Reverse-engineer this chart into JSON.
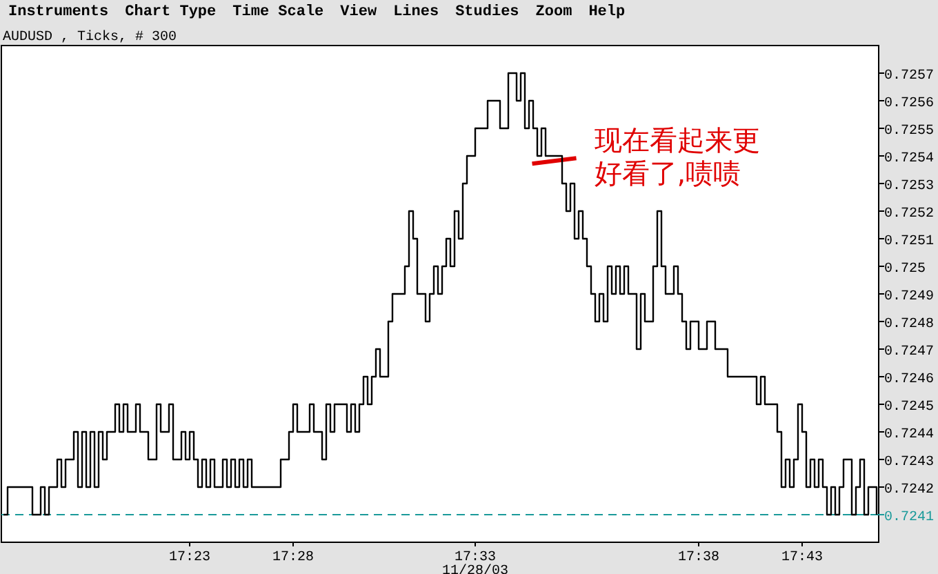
{
  "chart_data": {
    "type": "step",
    "title": "AUDUSD , Ticks, # 300",
    "categories": [
      null,
      null,
      null,
      null,
      null,
      null,
      null,
      null,
      null,
      null,
      null,
      null,
      null,
      null,
      null,
      null,
      null,
      null,
      null,
      null,
      null,
      null,
      null,
      null,
      null,
      null,
      null,
      null,
      null,
      null,
      null,
      null,
      null,
      null,
      null,
      null,
      null,
      null,
      null,
      null,
      null,
      null,
      null,
      null,
      null,
      "17:23",
      null,
      null,
      null,
      null,
      null,
      null,
      null,
      null,
      null,
      null,
      null,
      null,
      null,
      null,
      null,
      null,
      null,
      null,
      null,
      null,
      null,
      null,
      null,
      null,
      "17:28",
      null,
      null,
      null,
      null,
      null,
      null,
      null,
      null,
      null,
      null,
      null,
      null,
      null,
      null,
      null,
      null,
      null,
      null,
      null,
      null,
      null,
      null,
      null,
      null,
      null,
      null,
      null,
      null,
      null,
      null,
      null,
      null,
      null,
      null,
      null,
      null,
      null,
      null,
      null,
      null,
      null,
      null,
      null,
      "17:33\n11/28/03",
      null,
      null,
      null,
      null,
      null,
      null,
      null,
      null,
      null,
      null,
      null,
      null,
      null,
      null,
      null,
      null,
      null,
      null,
      null,
      null,
      null,
      null,
      null,
      null,
      null,
      null,
      null,
      null,
      null,
      null,
      null,
      null,
      null,
      null,
      null,
      null,
      null,
      null,
      null,
      null,
      null,
      null,
      null,
      null,
      null,
      null,
      null,
      null,
      null,
      null,
      null,
      null,
      null,
      "17:38",
      null,
      null,
      null,
      null,
      null,
      null,
      null,
      null,
      null,
      null,
      null,
      null,
      null,
      null,
      null,
      null,
      null,
      null,
      null,
      null,
      null,
      null,
      null,
      null,
      "17:43",
      null,
      null,
      null,
      null,
      null,
      null,
      null,
      null,
      null,
      null,
      null,
      null,
      null,
      null,
      null,
      null,
      null,
      null
    ],
    "ylim": [
      0.724,
      0.7258
    ],
    "yticks": [
      0.7242,
      0.7243,
      0.7244,
      0.7245,
      0.7246,
      0.7247,
      0.7248,
      0.7249,
      0.725,
      0.7251,
      0.7252,
      0.7253,
      0.7254,
      0.7255,
      0.7256,
      0.7257
    ],
    "ref_lines": [
      {
        "axis": "y",
        "value": 0.7241,
        "label": "0.7241",
        "color": "#1a9a9a",
        "line_style": "dashed"
      }
    ],
    "annotations": [
      "Instruments",
      "Chart Type",
      "Time Scale",
      "View",
      "Lines",
      "Studies",
      "Zoom",
      "Help",
      "现在看起来更好看了,啧啧"
    ],
    "series": [
      {
        "color": "#000000",
        "values": [
          0.7241,
          0.7242,
          0.7242,
          0.7242,
          0.7242,
          0.7242,
          0.7242,
          0.7241,
          0.7241,
          0.7242,
          0.7241,
          0.7242,
          0.7242,
          0.7243,
          0.7242,
          0.7243,
          0.7243,
          0.7244,
          0.7242,
          0.7244,
          0.7242,
          0.7244,
          0.7242,
          0.7244,
          0.7243,
          0.7244,
          0.7244,
          0.7245,
          0.7244,
          0.7245,
          0.7244,
          0.7244,
          0.7245,
          0.7244,
          0.7244,
          0.7243,
          0.7243,
          0.7245,
          0.7244,
          0.7244,
          0.7245,
          0.7243,
          0.7243,
          0.7244,
          0.7243,
          0.7244,
          0.7243,
          0.7242,
          0.7243,
          0.7242,
          0.7243,
          0.7242,
          0.7242,
          0.7243,
          0.7242,
          0.7243,
          0.7242,
          0.7243,
          0.7242,
          0.7243,
          0.7242,
          0.7242,
          0.7242,
          0.7242,
          0.7242,
          0.7242,
          0.7242,
          0.7243,
          0.7243,
          0.7244,
          0.7245,
          0.7244,
          0.7244,
          0.7244,
          0.7245,
          0.7244,
          0.7244,
          0.7243,
          0.7245,
          0.7244,
          0.7245,
          0.7245,
          0.7245,
          0.7244,
          0.7245,
          0.7244,
          0.7245,
          0.7246,
          0.7245,
          0.7246,
          0.7247,
          0.7246,
          0.7246,
          0.7248,
          0.7249,
          0.7249,
          0.7249,
          0.725,
          0.7252,
          0.7251,
          0.7249,
          0.7249,
          0.7248,
          0.7249,
          0.725,
          0.7249,
          0.725,
          0.7251,
          0.725,
          0.7252,
          0.7251,
          0.7253,
          0.7254,
          0.7254,
          0.7255,
          0.7255,
          0.7255,
          0.7256,
          0.7256,
          0.7256,
          0.7255,
          0.7255,
          0.7257,
          0.7257,
          0.7256,
          0.7257,
          0.7255,
          0.7256,
          0.7255,
          0.7254,
          0.7255,
          0.7254,
          0.7254,
          0.7254,
          0.7254,
          0.7253,
          0.7252,
          0.7253,
          0.7251,
          0.7252,
          0.7251,
          0.725,
          0.7249,
          0.7248,
          0.7249,
          0.7248,
          0.725,
          0.7249,
          0.725,
          0.7249,
          0.725,
          0.7249,
          0.7249,
          0.7247,
          0.7249,
          0.7248,
          0.7248,
          0.725,
          0.7252,
          0.725,
          0.7249,
          0.7249,
          0.725,
          0.7249,
          0.7248,
          0.7247,
          0.7248,
          0.7248,
          0.7247,
          0.7247,
          0.7248,
          0.7248,
          0.7247,
          0.7247,
          0.7247,
          0.7246,
          0.7246,
          0.7246,
          0.7246,
          0.7246,
          0.7246,
          0.7246,
          0.7245,
          0.7246,
          0.7245,
          0.7245,
          0.7245,
          0.7244,
          0.7242,
          0.7243,
          0.7242,
          0.7243,
          0.7245,
          0.7244,
          0.7242,
          0.7243,
          0.7242,
          0.7243,
          0.7242,
          0.7241,
          0.7242,
          0.7241,
          0.7242,
          0.7243,
          0.7243,
          0.7241,
          0.7242,
          0.7243,
          0.7241,
          0.7242,
          0.7242,
          0.7241
        ]
      }
    ]
  }
}
